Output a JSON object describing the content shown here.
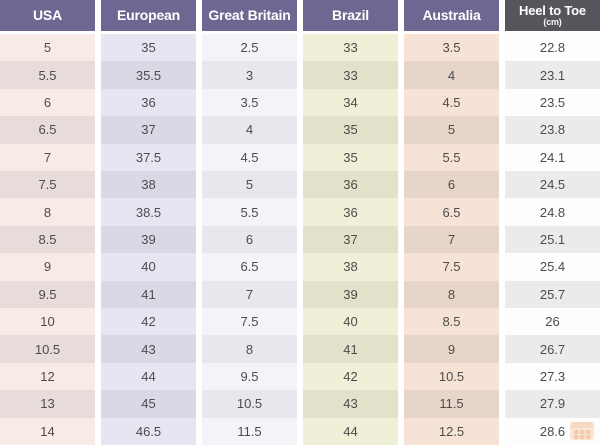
{
  "chart_data": {
    "type": "table",
    "columns": [
      "USA",
      "European",
      "Great Britain",
      "Brazil",
      "Australia",
      "Heel to Toe"
    ],
    "unit_note": "(cm)",
    "rows": [
      [
        "5",
        "35",
        "2.5",
        "33",
        "3.5",
        "22.8"
      ],
      [
        "5.5",
        "35.5",
        "3",
        "33",
        "4",
        "23.1"
      ],
      [
        "6",
        "36",
        "3.5",
        "34",
        "4.5",
        "23.5"
      ],
      [
        "6.5",
        "37",
        "4",
        "35",
        "5",
        "23.8"
      ],
      [
        "7",
        "37.5",
        "4.5",
        "35",
        "5.5",
        "24.1"
      ],
      [
        "7.5",
        "38",
        "5",
        "36",
        "6",
        "24.5"
      ],
      [
        "8",
        "38.5",
        "5.5",
        "36",
        "6.5",
        "24.8"
      ],
      [
        "8.5",
        "39",
        "6",
        "37",
        "7",
        "25.1"
      ],
      [
        "9",
        "40",
        "6.5",
        "38",
        "7.5",
        "25.4"
      ],
      [
        "9.5",
        "41",
        "7",
        "39",
        "8",
        "25.7"
      ],
      [
        "10",
        "42",
        "7.5",
        "40",
        "8.5",
        "26"
      ],
      [
        "10.5",
        "43",
        "8",
        "41",
        "9",
        "26.7"
      ],
      [
        "12",
        "44",
        "9.5",
        "42",
        "10.5",
        "27.3"
      ],
      [
        "13",
        "45",
        "10.5",
        "43",
        "11.5",
        "27.9"
      ],
      [
        "14",
        "46.5",
        "11.5",
        "44",
        "12.5",
        "28.6"
      ]
    ]
  },
  "colors": {
    "header_backgrounds": [
      "#6e6792",
      "#6e6792",
      "#6e6792",
      "#6e6792",
      "#6e6792",
      "#57545b"
    ],
    "header_text": "#ffffff",
    "column_row_backgrounds": [
      {
        "light": "#f8eae7",
        "dark": "#e8dcda"
      },
      {
        "light": "#e6e6f2",
        "dark": "#d9d9e6"
      },
      {
        "light": "#f4f4f8",
        "dark": "#e7e7ed"
      },
      {
        "light": "#f0f0d9",
        "dark": "#e2e2cb"
      },
      {
        "light": "#f6e3d6",
        "dark": "#e8d5ca"
      },
      {
        "light": "#fdfdfd",
        "dark": "#ebebeb"
      }
    ],
    "body_text": "#4c4c4c",
    "gap_background": "#ffffff",
    "watermark_orange_light": "#f8d3b4",
    "watermark_orange_dark": "#ef9f6f"
  }
}
